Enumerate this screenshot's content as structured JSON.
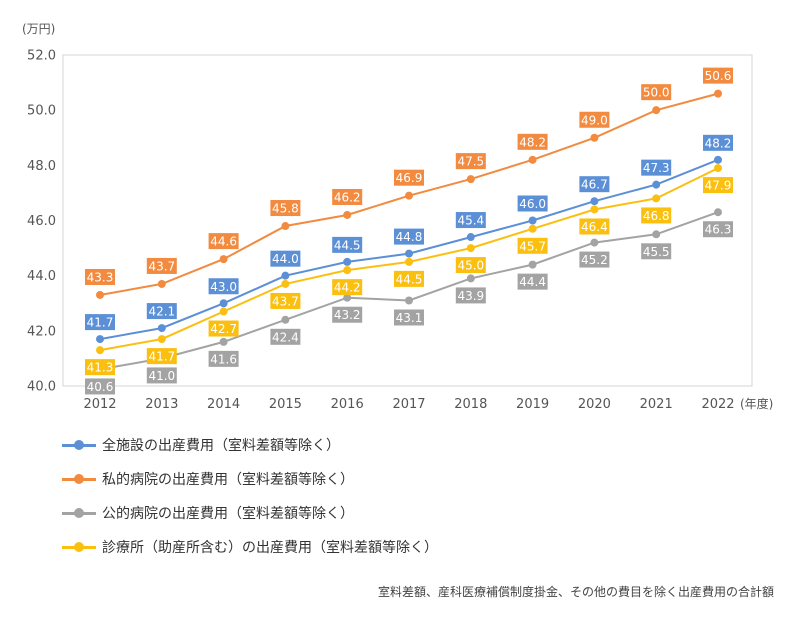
{
  "unit_label": "(万円)",
  "x_unit_label": "(年度)",
  "footnote": "室料差額、産科医療補償制度掛金、その他の費目を除く出産費用の合計額",
  "chart_data": {
    "type": "line",
    "x": [
      "2012",
      "2013",
      "2014",
      "2015",
      "2016",
      "2017",
      "2018",
      "2019",
      "2020",
      "2021",
      "2022"
    ],
    "ylim": [
      40.0,
      52.0
    ],
    "yticks": [
      "40.0",
      "42.0",
      "44.0",
      "46.0",
      "48.0",
      "50.0",
      "52.0"
    ],
    "grid": false,
    "legend_position": "bottom",
    "series": [
      {
        "name": "全施設の出産費用（室料差額等除く）",
        "color": "#5b8fd6",
        "values": [
          41.7,
          42.1,
          43.0,
          44.0,
          44.5,
          44.8,
          45.4,
          46.0,
          46.7,
          47.3,
          48.2
        ],
        "labels": [
          "41.7",
          "42.1",
          "43.0",
          "44.0",
          "44.5",
          "44.8",
          "45.4",
          "46.0",
          "46.7",
          "47.3",
          "48.2"
        ]
      },
      {
        "name": "私的病院の出産費用（室料差額等除く）",
        "color": "#f28a3f",
        "values": [
          43.3,
          43.7,
          44.6,
          45.8,
          46.2,
          46.9,
          47.5,
          48.2,
          49.0,
          50.0,
          50.6
        ],
        "labels": [
          "43.3",
          "43.7",
          "44.6",
          "45.8",
          "46.2",
          "46.9",
          "47.5",
          "48.2",
          "49.0",
          "50.0",
          "50.6"
        ]
      },
      {
        "name": "公的病院の出産費用（室料差額等除く）",
        "color": "#a3a3a3",
        "values": [
          40.6,
          41.0,
          41.6,
          42.4,
          43.2,
          43.1,
          43.9,
          44.4,
          45.2,
          45.5,
          46.3
        ],
        "labels": [
          "40.6",
          "41.0",
          "41.6",
          "42.4",
          "43.2",
          "43.1",
          "43.9",
          "44.4",
          "45.2",
          "45.5",
          "46.3"
        ]
      },
      {
        "name": "診療所（助産所含む）の出産費用（室料差額等除く）",
        "color": "#fbbf0f",
        "values": [
          41.3,
          41.7,
          42.7,
          43.7,
          44.2,
          44.5,
          45.0,
          45.7,
          46.4,
          46.8,
          47.9
        ],
        "labels": [
          "41.3",
          "41.7",
          "42.7",
          "43.7",
          "44.2",
          "44.5",
          "45.0",
          "45.7",
          "46.4",
          "46.8",
          "47.9"
        ]
      }
    ]
  }
}
